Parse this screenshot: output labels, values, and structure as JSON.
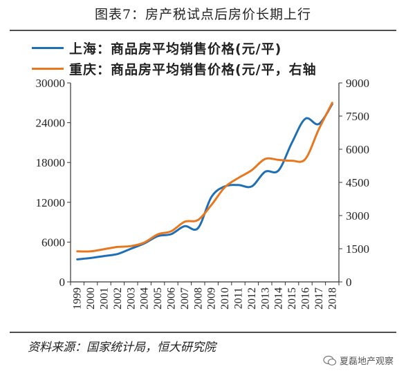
{
  "title": "图表7：房产税试点后房价长期上行",
  "source": "资料来源：国家统计局，恒大研究院",
  "watermark": "夏磊地产观察",
  "colors": {
    "shanghai": "#1f6fb5",
    "chongqing": "#e8771e",
    "axis": "#333333"
  },
  "chart_data": {
    "type": "line",
    "categories": [
      "1999",
      "2000",
      "2001",
      "2002",
      "2003",
      "2004",
      "2005",
      "2006",
      "2007",
      "2008",
      "2009",
      "2010",
      "2011",
      "2012",
      "2013",
      "2014",
      "2015",
      "2016",
      "2017",
      "2018"
    ],
    "series": [
      {
        "name": "上海：商品房平均销售价格(元/平)",
        "axis": "left",
        "values": [
          3400,
          3600,
          3900,
          4200,
          5000,
          5800,
          6900,
          7200,
          8400,
          8100,
          12800,
          14400,
          14600,
          14400,
          16600,
          16800,
          21000,
          24600,
          23800,
          26800
        ]
      },
      {
        "name": "重庆：商品房平均销售价格(元/平，右轴",
        "axis": "right",
        "values": [
          1380,
          1380,
          1480,
          1580,
          1620,
          1780,
          2150,
          2290,
          2720,
          2800,
          3480,
          4280,
          4700,
          5050,
          5560,
          5520,
          5480,
          5560,
          6900,
          8100
        ]
      }
    ],
    "y_left": {
      "min": 0,
      "max": 30000,
      "ticks": [
        "0",
        "6000",
        "12000",
        "18000",
        "24000",
        "30000"
      ]
    },
    "y_right": {
      "min": 0,
      "max": 9000,
      "ticks": [
        "0",
        "1500",
        "3000",
        "4500",
        "6000",
        "7500",
        "9000"
      ]
    }
  }
}
